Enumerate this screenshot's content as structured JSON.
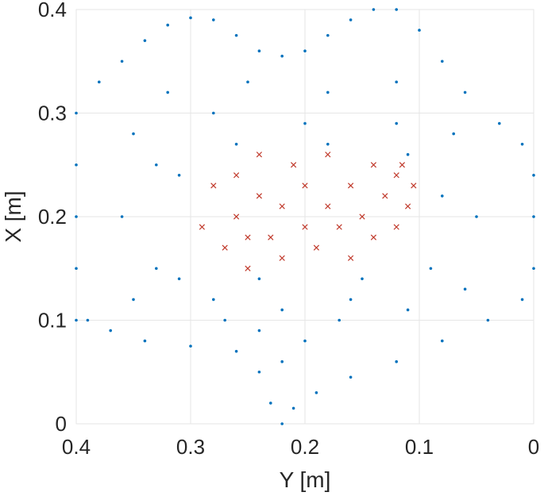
{
  "chart_data": {
    "type": "scatter",
    "title": "",
    "xlabel": "Y [m]",
    "ylabel": "X [m]",
    "xlim": [
      0.4,
      0
    ],
    "ylim": [
      0,
      0.4
    ],
    "x_reversed": true,
    "grid": true,
    "x_ticks": [
      "0.4",
      "0.3",
      "0.2",
      "0.1",
      "0"
    ],
    "y_ticks": [
      "0",
      "0.1",
      "0.2",
      "0.3",
      "0.4"
    ],
    "colors": {
      "series_1": "#0072bd",
      "series_2": "#c0392b"
    },
    "series": [
      {
        "marker": "dot",
        "color": "#0072bd",
        "points": [
          [
            0.4,
            0.1
          ],
          [
            0.4,
            0.15
          ],
          [
            0.4,
            0.2
          ],
          [
            0.4,
            0.25
          ],
          [
            0.4,
            0.3
          ],
          [
            0.38,
            0.33
          ],
          [
            0.36,
            0.35
          ],
          [
            0.34,
            0.37
          ],
          [
            0.32,
            0.385
          ],
          [
            0.3,
            0.392
          ],
          [
            0.28,
            0.39
          ],
          [
            0.26,
            0.375
          ],
          [
            0.24,
            0.36
          ],
          [
            0.22,
            0.355
          ],
          [
            0.2,
            0.36
          ],
          [
            0.18,
            0.375
          ],
          [
            0.16,
            0.39
          ],
          [
            0.14,
            0.4
          ],
          [
            0.12,
            0.4
          ],
          [
            0.1,
            0.38
          ],
          [
            0.08,
            0.35
          ],
          [
            0.06,
            0.32
          ],
          [
            0.03,
            0.29
          ],
          [
            0.01,
            0.27
          ],
          [
            0.0,
            0.24
          ],
          [
            0.0,
            0.2
          ],
          [
            0.0,
            0.15
          ],
          [
            0.01,
            0.12
          ],
          [
            0.04,
            0.1
          ],
          [
            0.08,
            0.08
          ],
          [
            0.12,
            0.06
          ],
          [
            0.16,
            0.045
          ],
          [
            0.19,
            0.03
          ],
          [
            0.21,
            0.015
          ],
          [
            0.22,
            0.0
          ],
          [
            0.23,
            0.02
          ],
          [
            0.24,
            0.05
          ],
          [
            0.26,
            0.07
          ],
          [
            0.3,
            0.075
          ],
          [
            0.34,
            0.08
          ],
          [
            0.37,
            0.09
          ],
          [
            0.39,
            0.1
          ],
          [
            0.33,
            0.15
          ],
          [
            0.33,
            0.25
          ],
          [
            0.32,
            0.32
          ],
          [
            0.25,
            0.33
          ],
          [
            0.18,
            0.32
          ],
          [
            0.12,
            0.33
          ],
          [
            0.07,
            0.28
          ],
          [
            0.05,
            0.2
          ],
          [
            0.06,
            0.13
          ],
          [
            0.11,
            0.11
          ],
          [
            0.16,
            0.12
          ],
          [
            0.22,
            0.11
          ],
          [
            0.28,
            0.12
          ],
          [
            0.35,
            0.12
          ],
          [
            0.36,
            0.2
          ],
          [
            0.35,
            0.28
          ],
          [
            0.28,
            0.3
          ],
          [
            0.2,
            0.29
          ],
          [
            0.12,
            0.29
          ],
          [
            0.08,
            0.22
          ],
          [
            0.09,
            0.15
          ],
          [
            0.15,
            0.14
          ],
          [
            0.24,
            0.14
          ],
          [
            0.31,
            0.14
          ],
          [
            0.31,
            0.24
          ],
          [
            0.26,
            0.27
          ],
          [
            0.18,
            0.27
          ],
          [
            0.11,
            0.26
          ],
          [
            0.22,
            0.06
          ],
          [
            0.2,
            0.08
          ],
          [
            0.24,
            0.09
          ],
          [
            0.27,
            0.1
          ],
          [
            0.17,
            0.1
          ]
        ]
      },
      {
        "marker": "x",
        "color": "#c0392b",
        "points": [
          [
            0.29,
            0.19
          ],
          [
            0.28,
            0.23
          ],
          [
            0.27,
            0.17
          ],
          [
            0.26,
            0.2
          ],
          [
            0.26,
            0.24
          ],
          [
            0.25,
            0.15
          ],
          [
            0.24,
            0.22
          ],
          [
            0.24,
            0.26
          ],
          [
            0.23,
            0.18
          ],
          [
            0.22,
            0.21
          ],
          [
            0.22,
            0.16
          ],
          [
            0.21,
            0.25
          ],
          [
            0.2,
            0.19
          ],
          [
            0.2,
            0.23
          ],
          [
            0.19,
            0.17
          ],
          [
            0.18,
            0.21
          ],
          [
            0.18,
            0.26
          ],
          [
            0.17,
            0.19
          ],
          [
            0.16,
            0.16
          ],
          [
            0.16,
            0.23
          ],
          [
            0.15,
            0.2
          ],
          [
            0.14,
            0.25
          ],
          [
            0.14,
            0.18
          ],
          [
            0.13,
            0.22
          ],
          [
            0.12,
            0.19
          ],
          [
            0.12,
            0.24
          ],
          [
            0.11,
            0.21
          ],
          [
            0.105,
            0.23
          ],
          [
            0.115,
            0.25
          ],
          [
            0.25,
            0.18
          ]
        ]
      }
    ]
  }
}
